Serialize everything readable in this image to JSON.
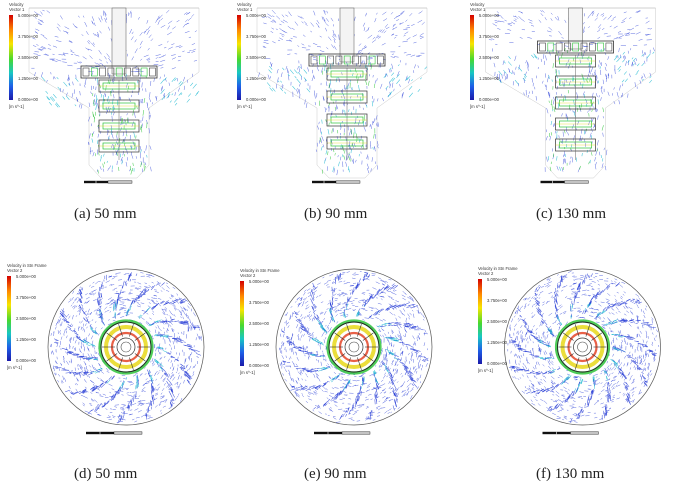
{
  "figure": {
    "panels": [
      {
        "id": "a",
        "view": "side",
        "caption": "(a) 50 mm",
        "legend": {
          "title": "Velocity",
          "subtitle": "Vector 1",
          "ticks": [
            "5.000e+00",
            "3.750e+00",
            "2.500e+00",
            "1.250e+00",
            "0.000e+00"
          ],
          "unit": "[m s^-1]"
        }
      },
      {
        "id": "b",
        "view": "side",
        "caption": "(b) 90 mm",
        "legend": {
          "title": "Velocity",
          "subtitle": "Vector 1",
          "ticks": [
            "5.000e+00",
            "3.750e+00",
            "2.500e+00",
            "1.250e+00",
            "0.000e+00"
          ],
          "unit": "[m s^-1]"
        }
      },
      {
        "id": "c",
        "view": "side",
        "caption": "(c) 130 mm",
        "legend": {
          "title": "Velocity",
          "subtitle": "Vector 1",
          "ticks": [
            "5.000e+00",
            "3.750e+00",
            "2.500e+00",
            "1.250e+00",
            "0.000e+00"
          ],
          "unit": "[m s^-1]"
        }
      },
      {
        "id": "d",
        "view": "top",
        "caption": "(d) 50 mm",
        "legend": {
          "title": "Velocity in Stn Frame",
          "subtitle": "Vector 2",
          "ticks": [
            "5.000e+00",
            "3.750e+00",
            "2.500e+00",
            "1.250e+00",
            "0.000e+00"
          ],
          "unit": "[m s^-1]"
        }
      },
      {
        "id": "e",
        "view": "top",
        "caption": "(e) 90 mm",
        "legend": {
          "title": "Velocity in Stn Frame",
          "subtitle": "Vector 2",
          "ticks": [
            "5.000e+00",
            "3.750e+00",
            "2.500e+00",
            "1.250e+00",
            "0.000e+00"
          ],
          "unit": "[m s^-1]"
        }
      },
      {
        "id": "f",
        "view": "top",
        "caption": "(f) 130 mm",
        "legend": {
          "title": "Velocity in Stn Frame",
          "subtitle": "Vector 2",
          "ticks": [
            "5.000e+00",
            "3.750e+00",
            "2.500e+00",
            "1.250e+00",
            "0.000e+00"
          ],
          "unit": "[m s^-1]"
        }
      }
    ],
    "colors": {
      "vector_blue": "#2a3fd6",
      "vector_cyan": "#19b7d0",
      "vector_green": "#2fc43b",
      "vector_yellow": "#e8d81a",
      "vector_red": "#e23a1a",
      "geometry": "#333333"
    }
  }
}
